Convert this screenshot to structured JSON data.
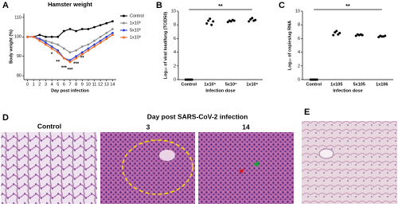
{
  "chart_data": [
    {
      "type": "line",
      "title": "Hamster weight",
      "xlabel": "Day post infection",
      "ylabel": "Body weight (%)",
      "x": [
        0,
        1,
        2,
        3,
        4,
        5,
        6,
        7,
        8,
        9,
        10,
        11,
        12,
        13,
        14
      ],
      "xlim": [
        -0.6,
        14.6
      ],
      "xticks": [
        0,
        1,
        2,
        3,
        4,
        5,
        6,
        7,
        8,
        9,
        10,
        11,
        12,
        13,
        14
      ],
      "ylim": [
        78,
        112
      ],
      "yticks": [
        80,
        90,
        100,
        110
      ],
      "legend": "right",
      "series": [
        {
          "name": "Control",
          "color": "#000000",
          "values": [
            100,
            100,
            101,
            100,
            100,
            100,
            103,
            104,
            103,
            104,
            104,
            105,
            106,
            107,
            108
          ]
        },
        {
          "name": "1x10⁵",
          "color": "#8c8c8c",
          "values": [
            100,
            100,
            99,
            98,
            97,
            96,
            94,
            92,
            93,
            95,
            96,
            98,
            100,
            102,
            104
          ]
        },
        {
          "name": "5x10⁵",
          "color": "#2b3fd6",
          "values": [
            100,
            100,
            99,
            97,
            95,
            93,
            89,
            88,
            90,
            92,
            94,
            96,
            98,
            100,
            102
          ]
        },
        {
          "name": "1x10⁶",
          "color": "#f26b21",
          "values": [
            100,
            100,
            98,
            96,
            94,
            92,
            89,
            87,
            89,
            91,
            93,
            95,
            97,
            99,
            101
          ]
        }
      ],
      "annotations": [
        {
          "x": 4,
          "y": 91,
          "text": "*"
        },
        {
          "x": 5,
          "y": 87,
          "text": "**"
        },
        {
          "x": 6,
          "y": 84,
          "text": "***"
        },
        {
          "x": 7,
          "y": 83,
          "text": "***"
        },
        {
          "x": 8,
          "y": 86,
          "text": "***"
        },
        {
          "x": 9,
          "y": 89,
          "text": "**"
        }
      ]
    },
    {
      "type": "dot",
      "xlabel": "Infection dose",
      "ylabel": "Log₁₀ of viral load/lung (TCID50)",
      "categories": [
        "Control",
        "1x10⁵",
        "5x10⁵",
        "1x10⁶"
      ],
      "color": "#000000",
      "values": [
        [
          0,
          0,
          0,
          0,
          0
        ],
        [
          8.2,
          8.6,
          8.9,
          8.0,
          8.5
        ],
        [
          8.4,
          8.6,
          8.5,
          8.7,
          8.6
        ],
        [
          8.5,
          8.8,
          9.0,
          8.6,
          8.7
        ]
      ],
      "ylim": [
        0,
        10
      ],
      "yticks": [
        0,
        2,
        4,
        6,
        8,
        10
      ],
      "significance": "**"
    },
    {
      "type": "dot",
      "xlabel": "Infection dose",
      "ylabel": "Log₁₀ of copies/ug RNA",
      "categories": [
        "Control",
        "1x105",
        "5x105",
        "1x106"
      ],
      "color": "#000000",
      "values": [
        [
          0,
          0,
          0,
          0,
          0
        ],
        [
          6.5,
          6.9,
          7.1,
          6.6,
          6.8
        ],
        [
          6.4,
          6.6,
          6.5,
          6.6,
          6.5
        ],
        [
          6.2,
          6.4,
          6.3,
          6.3,
          6.4
        ]
      ],
      "ylim": [
        0,
        10
      ],
      "yticks": [
        0,
        2,
        4,
        6,
        8,
        10
      ],
      "significance": "**"
    }
  ],
  "panels": {
    "labels": [
      "A",
      "B",
      "C",
      "D",
      "E"
    ],
    "histology": {
      "heading": "Day post SARS-CoV-2 infection",
      "captions": [
        "Control",
        "3",
        "14"
      ]
    }
  }
}
